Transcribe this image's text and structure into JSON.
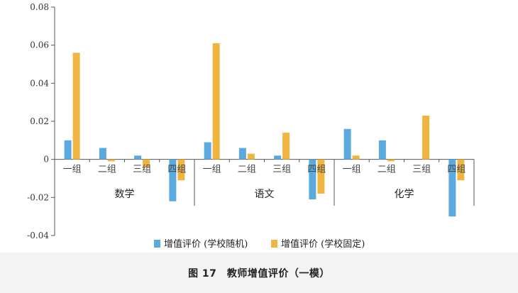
{
  "chart_data": {
    "type": "bar",
    "groups": [
      {
        "name": "数学",
        "categories": [
          "一组",
          "二组",
          "三组",
          "四组"
        ]
      },
      {
        "name": "语文",
        "categories": [
          "一组",
          "二组",
          "三组",
          "四组"
        ]
      },
      {
        "name": "化学",
        "categories": [
          "一组",
          "二组",
          "三组",
          "四组"
        ]
      }
    ],
    "series": [
      {
        "name": "增值评价 (学校随机)",
        "color": "#5aaae0",
        "values": [
          0.01,
          0.006,
          0.002,
          -0.022,
          0.009,
          0.006,
          0.002,
          -0.021,
          0.016,
          0.01,
          0.0,
          -0.03
        ]
      },
      {
        "name": "增值评价 (学校固定)",
        "color": "#f0b540",
        "values": [
          0.056,
          -0.001,
          -0.004,
          -0.011,
          0.061,
          0.003,
          0.014,
          -0.018,
          0.002,
          -0.001,
          0.023,
          -0.011
        ]
      }
    ],
    "yticks": [
      "0.08",
      "0.06",
      "0.04",
      "0.02",
      "0",
      "-0.02",
      "-0.04"
    ],
    "ylim": [
      -0.04,
      0.08
    ],
    "legend_position": "bottom"
  },
  "caption": "图 17　教师增值评价（一模）"
}
